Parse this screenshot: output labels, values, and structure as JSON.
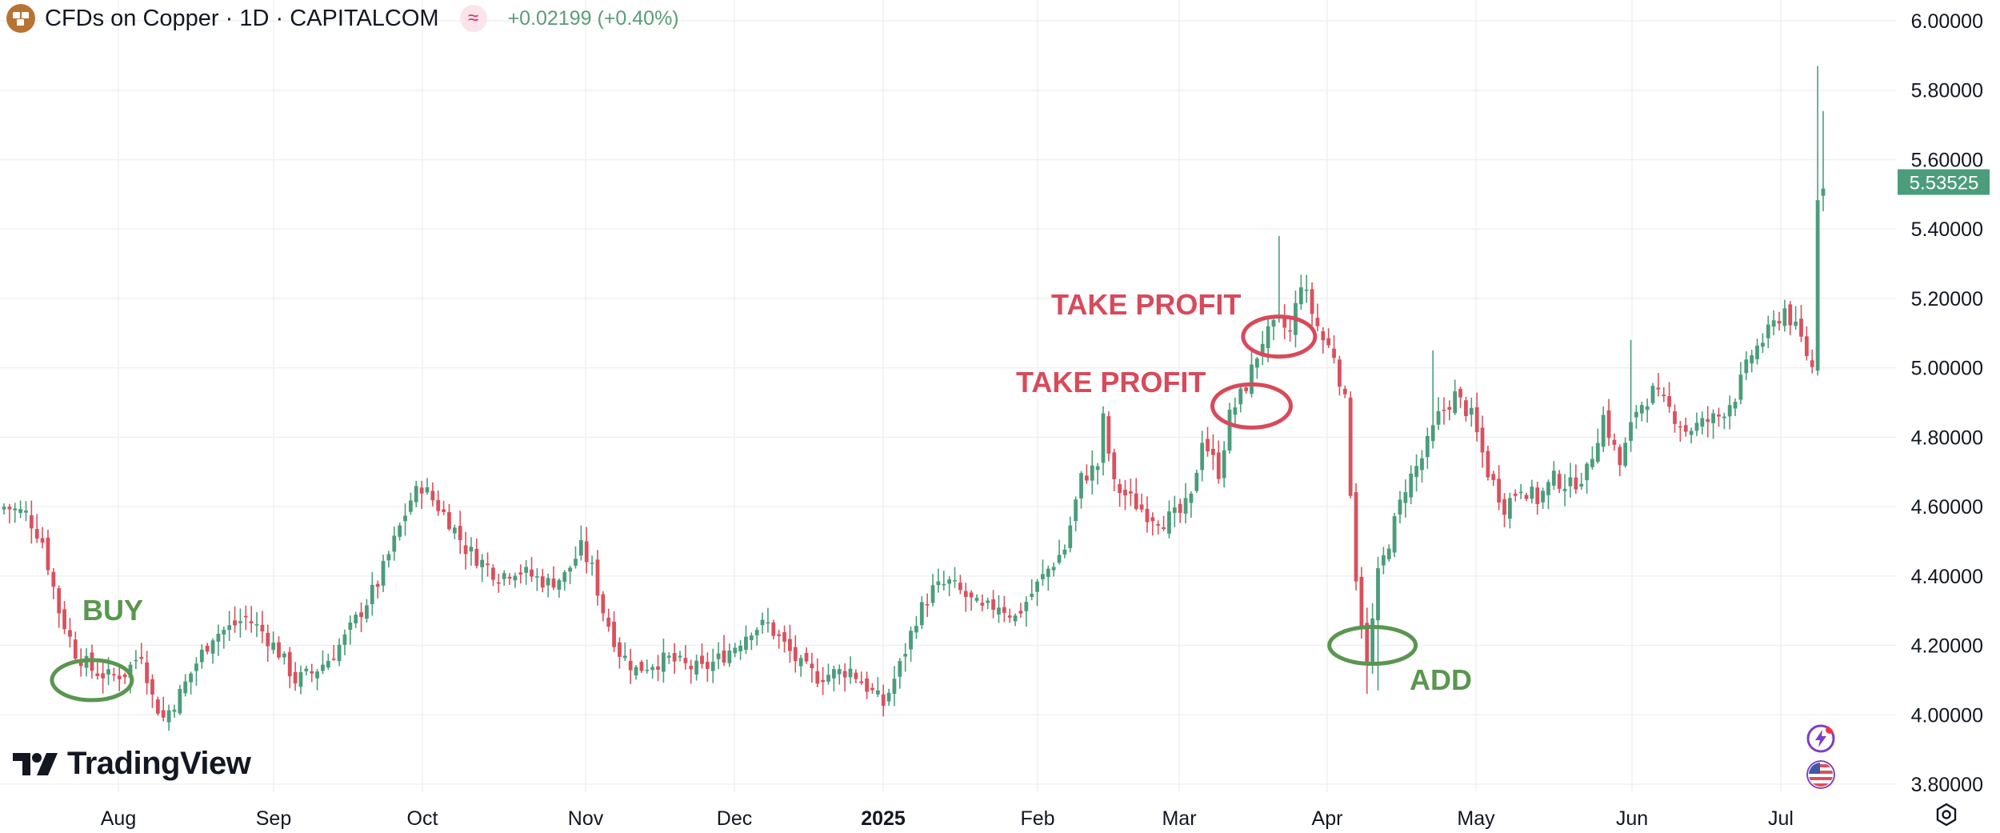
{
  "header": {
    "title": "CFDs on Copper · 1D · CAPITALCOM",
    "change": "+0.02199 (+0.40%)",
    "change_color": "#5b9c79",
    "symbol_icon": "copper-symbol-icon",
    "indicator_icon": "indicator-wave-icon"
  },
  "branding": {
    "logo_text": "TradingView"
  },
  "chart_data": {
    "type": "candlestick",
    "symbol": "CFDs on Copper",
    "interval": "1D",
    "exchange": "CAPITALCOM",
    "ylim": [
      3.75,
      6.05
    ],
    "y_ticks": [
      "6.00000",
      "5.80000",
      "5.60000",
      "5.40000",
      "5.20000",
      "5.00000",
      "4.80000",
      "4.60000",
      "4.40000",
      "4.20000",
      "4.00000",
      "3.80000"
    ],
    "x_ticks": [
      {
        "label": "Aug",
        "bold": false
      },
      {
        "label": "Sep",
        "bold": false
      },
      {
        "label": "Oct",
        "bold": false
      },
      {
        "label": "Nov",
        "bold": false
      },
      {
        "label": "Dec",
        "bold": false
      },
      {
        "label": "2025",
        "bold": true
      },
      {
        "label": "Feb",
        "bold": false
      },
      {
        "label": "Mar",
        "bold": false
      },
      {
        "label": "Apr",
        "bold": false
      },
      {
        "label": "May",
        "bold": false
      },
      {
        "label": "Jun",
        "bold": false
      },
      {
        "label": "Jul",
        "bold": false
      }
    ],
    "last_price": 5.53525,
    "last_price_label": "5.53525",
    "up_color": "#4b9d7c",
    "down_color": "#d9515d",
    "grid": true,
    "close_path": [
      [
        0,
        4.6
      ],
      [
        4,
        4.58
      ],
      [
        7,
        4.5
      ],
      [
        10,
        4.3
      ],
      [
        13,
        4.18
      ],
      [
        16,
        4.13
      ],
      [
        19,
        4.11
      ],
      [
        22,
        4.12
      ],
      [
        25,
        4.18
      ],
      [
        27,
        4.05
      ],
      [
        29,
        3.99
      ],
      [
        32,
        4.06
      ],
      [
        35,
        4.15
      ],
      [
        38,
        4.23
      ],
      [
        41,
        4.25
      ],
      [
        44,
        4.28
      ],
      [
        47,
        4.24
      ],
      [
        50,
        4.18
      ],
      [
        53,
        4.1
      ],
      [
        56,
        4.12
      ],
      [
        59,
        4.16
      ],
      [
        62,
        4.22
      ],
      [
        65,
        4.3
      ],
      [
        68,
        4.38
      ],
      [
        71,
        4.5
      ],
      [
        74,
        4.62
      ],
      [
        76,
        4.66
      ],
      [
        78,
        4.62
      ],
      [
        81,
        4.56
      ],
      [
        84,
        4.48
      ],
      [
        87,
        4.44
      ],
      [
        90,
        4.4
      ],
      [
        93,
        4.42
      ],
      [
        96,
        4.4
      ],
      [
        99,
        4.38
      ],
      [
        102,
        4.4
      ],
      [
        105,
        4.48
      ],
      [
        107,
        4.42
      ],
      [
        109,
        4.3
      ],
      [
        112,
        4.18
      ],
      [
        115,
        4.13
      ],
      [
        118,
        4.15
      ],
      [
        121,
        4.16
      ],
      [
        124,
        4.14
      ],
      [
        127,
        4.13
      ],
      [
        130,
        4.16
      ],
      [
        133,
        4.2
      ],
      [
        136,
        4.25
      ],
      [
        139,
        4.26
      ],
      [
        142,
        4.2
      ],
      [
        145,
        4.14
      ],
      [
        148,
        4.11
      ],
      [
        151,
        4.12
      ],
      [
        154,
        4.13
      ],
      [
        157,
        4.08
      ],
      [
        160,
        4.03
      ],
      [
        163,
        4.14
      ],
      [
        166,
        4.28
      ],
      [
        169,
        4.36
      ],
      [
        172,
        4.38
      ],
      [
        175,
        4.34
      ],
      [
        178,
        4.3
      ],
      [
        181,
        4.32
      ],
      [
        184,
        4.28
      ],
      [
        187,
        4.35
      ],
      [
        190,
        4.42
      ],
      [
        193,
        4.48
      ],
      [
        196,
        4.68
      ],
      [
        199,
        4.72
      ],
      [
        200,
        4.85
      ],
      [
        202,
        4.66
      ],
      [
        205,
        4.62
      ],
      [
        208,
        4.58
      ],
      [
        211,
        4.56
      ],
      [
        214,
        4.58
      ],
      [
        216,
        4.62
      ],
      [
        218,
        4.8
      ],
      [
        221,
        4.7
      ],
      [
        223,
        4.86
      ],
      [
        226,
        4.95
      ],
      [
        229,
        5.08
      ],
      [
        232,
        5.13
      ],
      [
        234,
        5.1
      ],
      [
        236,
        5.25
      ],
      [
        238,
        5.16
      ],
      [
        240,
        5.08
      ],
      [
        242,
        5.04
      ],
      [
        244,
        4.9
      ],
      [
        246,
        4.4
      ],
      [
        248,
        4.14
      ],
      [
        250,
        4.4
      ],
      [
        252,
        4.5
      ],
      [
        255,
        4.66
      ],
      [
        258,
        4.74
      ],
      [
        261,
        4.86
      ],
      [
        264,
        4.92
      ],
      [
        267,
        4.86
      ],
      [
        270,
        4.7
      ],
      [
        273,
        4.6
      ],
      [
        276,
        4.66
      ],
      [
        279,
        4.62
      ],
      [
        282,
        4.68
      ],
      [
        285,
        4.66
      ],
      [
        288,
        4.7
      ],
      [
        291,
        4.86
      ],
      [
        294,
        4.72
      ],
      [
        297,
        4.88
      ],
      [
        300,
        4.93
      ],
      [
        303,
        4.88
      ],
      [
        306,
        4.82
      ],
      [
        309,
        4.84
      ],
      [
        312,
        4.86
      ],
      [
        315,
        4.92
      ],
      [
        318,
        5.04
      ],
      [
        321,
        5.1
      ],
      [
        324,
        5.17
      ],
      [
        327,
        5.08
      ],
      [
        329,
        5.0
      ],
      [
        330,
        5.5
      ],
      [
        331,
        5.53525
      ]
    ],
    "wick_spikes": [
      [
        200,
        4.88
      ],
      [
        232,
        5.38
      ],
      [
        260,
        5.05
      ],
      [
        296,
        5.08
      ],
      [
        330,
        5.87
      ],
      [
        331,
        5.74
      ],
      [
        248,
        4.06
      ],
      [
        250,
        4.07
      ]
    ],
    "annotations": [
      {
        "text": "BUY",
        "color": "#5a9650",
        "kind": "buy"
      },
      {
        "text": "TAKE PROFIT",
        "color": "#d84a5a",
        "kind": "take-profit-1"
      },
      {
        "text": "TAKE PROFIT",
        "color": "#d84a5a",
        "kind": "take-profit-2"
      },
      {
        "text": "ADD",
        "color": "#5a9650",
        "kind": "add"
      }
    ]
  },
  "toolbar": {
    "icons": [
      "lightning-icon",
      "us-flag-icon",
      "settings-gear-icon"
    ]
  }
}
